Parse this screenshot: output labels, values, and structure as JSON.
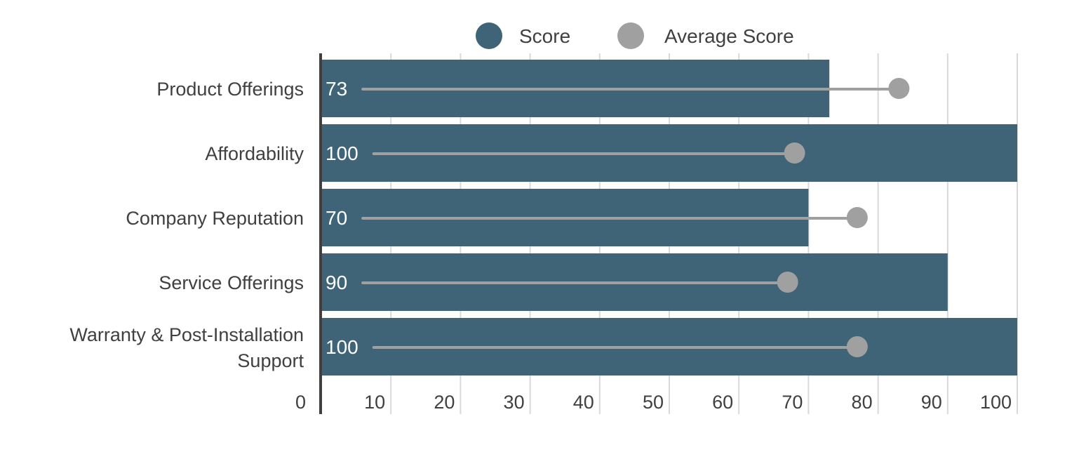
{
  "chart_data": {
    "type": "bar",
    "orientation": "horizontal",
    "categories": [
      "Product Offerings",
      "Affordability",
      "Company Reputation",
      "Service Offerings",
      "Warranty & Post-Installation Support"
    ],
    "series": [
      {
        "name": "Score",
        "values": [
          73,
          100,
          70,
          90,
          100
        ],
        "color": "#406477",
        "mark": "bar"
      },
      {
        "name": "Average Score",
        "values": [
          83,
          68,
          77,
          67,
          77
        ],
        "color": "#a0a0a0",
        "mark": "lollipop"
      }
    ],
    "value_labels": [
      "73",
      "100",
      "70",
      "90",
      "100"
    ],
    "x_ticks": [
      "0",
      "10",
      "20",
      "30",
      "40",
      "50",
      "60",
      "70",
      "80",
      "90",
      "100"
    ],
    "xlim": [
      0,
      100
    ],
    "legend": {
      "position": "top-center",
      "items": [
        "Score",
        "Average Score"
      ]
    },
    "grid": {
      "vertical": true,
      "color": "#d9d9d9"
    },
    "title": "",
    "xlabel": "",
    "ylabel": ""
  }
}
